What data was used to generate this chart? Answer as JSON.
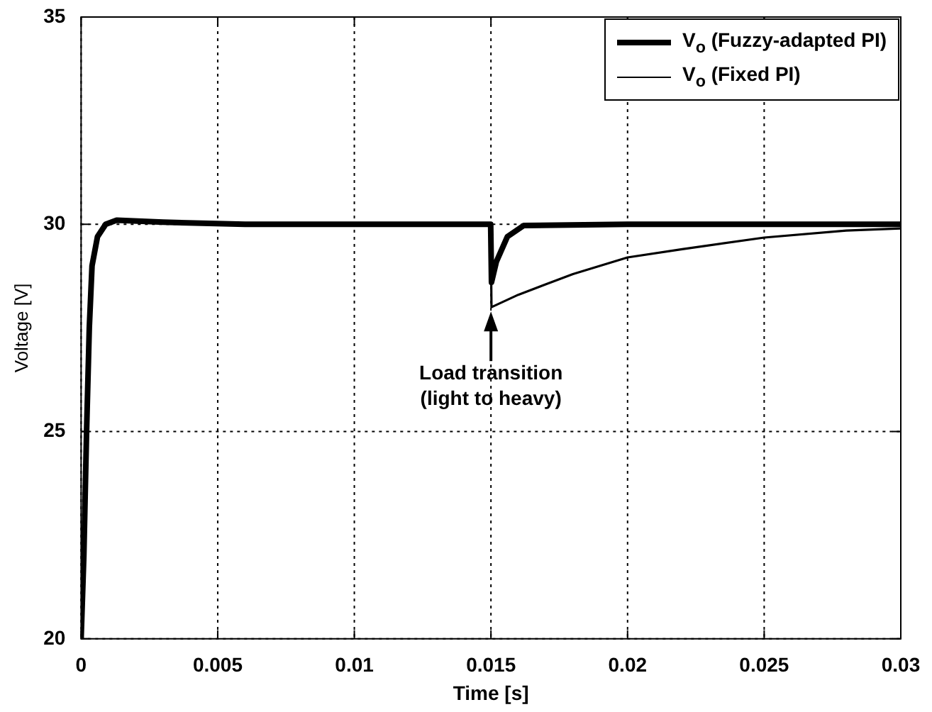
{
  "chart_data": {
    "type": "line",
    "xlabel": "Time [s]",
    "ylabel": "Voltage [V]",
    "xlim": [
      0,
      0.03
    ],
    "xticks": [
      0,
      0.005,
      0.01,
      0.015,
      0.02,
      0.025,
      0.03
    ],
    "ylim": [
      20,
      35
    ],
    "yticks": [
      20,
      25,
      30,
      35
    ],
    "grid": true,
    "legend": "top right",
    "marker": "none",
    "line_style": "solid",
    "series": [
      {
        "name": "V$_{o}$ (Fuzzy-adapted PI)",
        "color": "#000000",
        "x": [
          0,
          0.0001,
          0.0002,
          0.0003,
          0.0004,
          0.0006,
          0.0009,
          0.0013,
          0.003,
          0.006,
          0.01499,
          0.01502,
          0.0152,
          0.0156,
          0.0162,
          0.02,
          0.03
        ],
        "values": [
          20,
          22,
          25,
          27.5,
          29,
          29.7,
          30,
          30.1,
          30.05,
          30,
          30,
          28.6,
          29.1,
          29.7,
          29.97,
          30,
          30
        ]
      },
      {
        "name": "V$_{o}$ (Fixed PI)",
        "color": "#000000",
        "x": [
          0,
          0.0001,
          0.0002,
          0.0003,
          0.0004,
          0.0006,
          0.0009,
          0.0013,
          0.003,
          0.006,
          0.01499,
          0.01502,
          0.016,
          0.017,
          0.018,
          0.02,
          0.022,
          0.025,
          0.028,
          0.03
        ],
        "values": [
          20,
          22,
          25,
          27.5,
          29,
          29.7,
          30,
          30.1,
          30.05,
          30,
          30,
          28,
          28.3,
          28.55,
          28.8,
          29.2,
          29.4,
          29.68,
          29.85,
          29.9
        ]
      }
    ],
    "annotations": [
      {
        "text": "Load transition\n(light to heavy)",
        "x": 0.015,
        "y": 28
      }
    ]
  }
}
